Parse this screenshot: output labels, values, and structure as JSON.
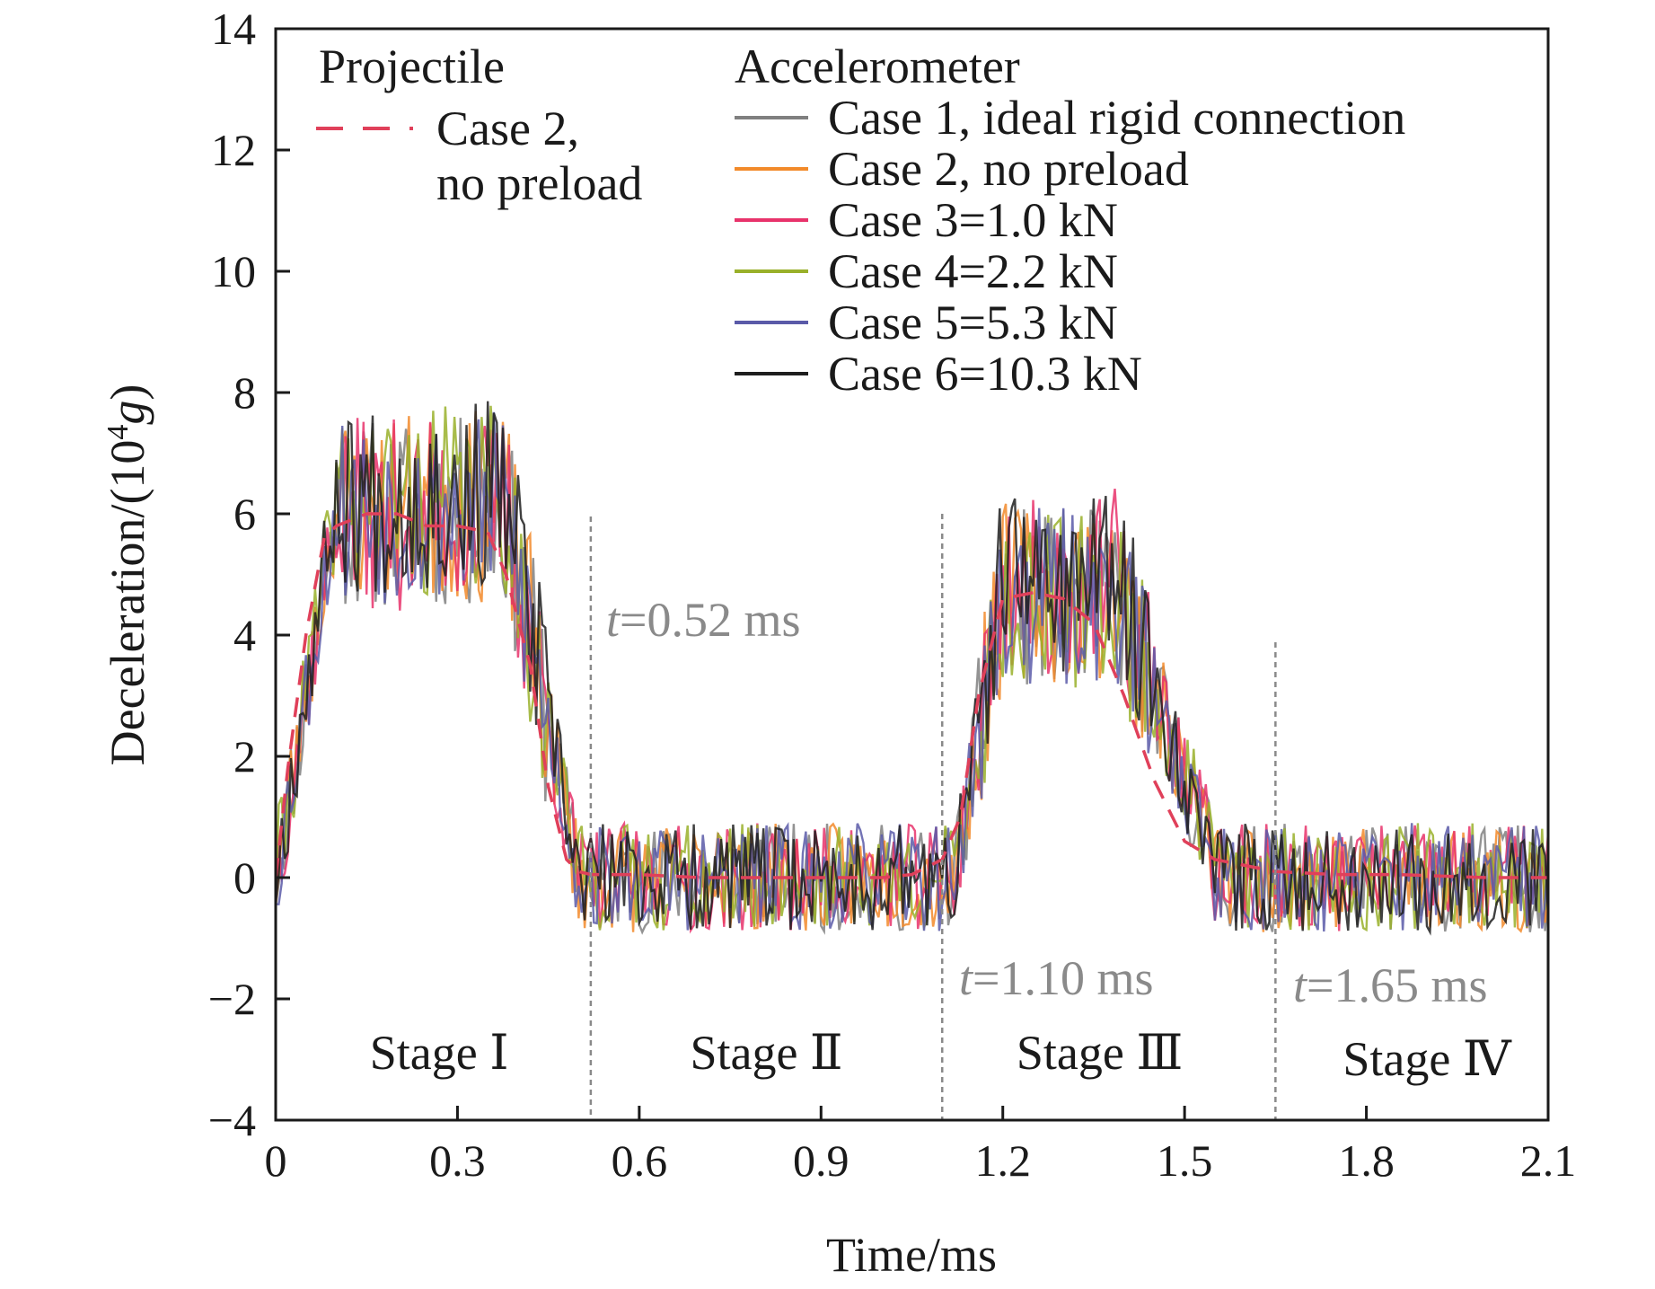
{
  "chart_data": {
    "type": "line",
    "xlabel": "Time/ms",
    "ylabel": "Deceleration/(10⁴g)",
    "ylabel_parts": {
      "base": "Deceleration/(10",
      "sup": "4",
      "unit": "g",
      "close": ")"
    },
    "xlim": [
      0,
      2.1
    ],
    "ylim": [
      -4,
      14
    ],
    "x_ticks": [
      0,
      0.3,
      0.6,
      0.9,
      1.2,
      1.5,
      1.8,
      2.1
    ],
    "x_tick_labels": [
      "0",
      "0.3",
      "0.6",
      "0.9",
      "1.2",
      "1.5",
      "1.8",
      "2.1"
    ],
    "y_ticks": [
      -4,
      -2,
      0,
      2,
      4,
      6,
      8,
      10,
      12,
      14
    ],
    "y_tick_labels": [
      "−4",
      "−2",
      "0",
      "2",
      "4",
      "6",
      "8",
      "10",
      "12",
      "14"
    ],
    "grid": false,
    "legend_projectile": {
      "heading": "Projectile",
      "entry_line1": "Case 2,",
      "entry_line2": "no preload",
      "color": "#e0405a",
      "style": "dashed"
    },
    "legend_accelerometer": {
      "heading": "Accelerometer",
      "placement": "top-right"
    },
    "series": [
      {
        "name": "Case 1, ideal rigid connection",
        "color": "#808080",
        "peak1": 6.0,
        "peak2": 4.6,
        "seed": 11
      },
      {
        "name": "Case 2, no preload",
        "color": "#f28a2a",
        "peak1": 6.1,
        "peak2": 4.7,
        "seed": 23
      },
      {
        "name": "Case 3=1.0 kN",
        "color": "#e8336b",
        "peak1": 6.0,
        "peak2": 4.8,
        "seed": 37
      },
      {
        "name": "Case 4=2.2 kN",
        "color": "#99b02a",
        "peak1": 6.2,
        "peak2": 4.5,
        "seed": 41
      },
      {
        "name": "Case 5=5.3 kN",
        "color": "#5a5aa8",
        "peak1": 6.1,
        "peak2": 4.6,
        "seed": 53
      },
      {
        "name": "Case 6=10.3 kN",
        "color": "#1e1e1e",
        "peak1": 6.3,
        "peak2": 4.9,
        "seed": 67
      }
    ],
    "projectile_curve": {
      "name": "Case 2, no preload",
      "x": [
        0,
        0.02,
        0.05,
        0.08,
        0.1,
        0.15,
        0.2,
        0.25,
        0.3,
        0.35,
        0.38,
        0.42,
        0.45,
        0.48,
        0.5,
        0.52,
        0.6,
        0.7,
        0.8,
        0.9,
        1.0,
        1.05,
        1.1,
        1.13,
        1.16,
        1.2,
        1.25,
        1.3,
        1.35,
        1.4,
        1.45,
        1.5,
        1.55,
        1.6,
        1.65,
        1.75,
        1.85,
        2.0,
        2.1
      ],
      "y": [
        0,
        1.8,
        4.0,
        5.6,
        5.8,
        6.0,
        6.0,
        5.8,
        5.8,
        5.7,
        5.0,
        3.5,
        1.5,
        0.3,
        0.1,
        0.05,
        0.05,
        0.0,
        0.0,
        0.0,
        0.0,
        0.05,
        0.3,
        1.0,
        3.0,
        4.6,
        4.7,
        4.6,
        4.2,
        3.0,
        1.6,
        0.6,
        0.3,
        0.2,
        0.1,
        0.05,
        0.05,
        0.0,
        0.0
      ]
    },
    "vlines": [
      {
        "x": 0.52,
        "label": "t=0.52 ms",
        "label_t": "t",
        "label_rest": "=0.52 ms"
      },
      {
        "x": 1.1,
        "label": "t=1.10 ms",
        "label_t": "t",
        "label_rest": "=1.10 ms"
      },
      {
        "x": 1.65,
        "label": "t=1.65 ms",
        "label_t": "t",
        "label_rest": "=1.65 ms"
      }
    ],
    "stages": [
      {
        "label": "Stage Ⅰ",
        "x": 0.27
      },
      {
        "label": "Stage Ⅱ",
        "x": 0.81
      },
      {
        "label": "Stage Ⅲ",
        "x": 1.36
      },
      {
        "label": "Stage Ⅳ",
        "x": 1.9
      }
    ]
  }
}
